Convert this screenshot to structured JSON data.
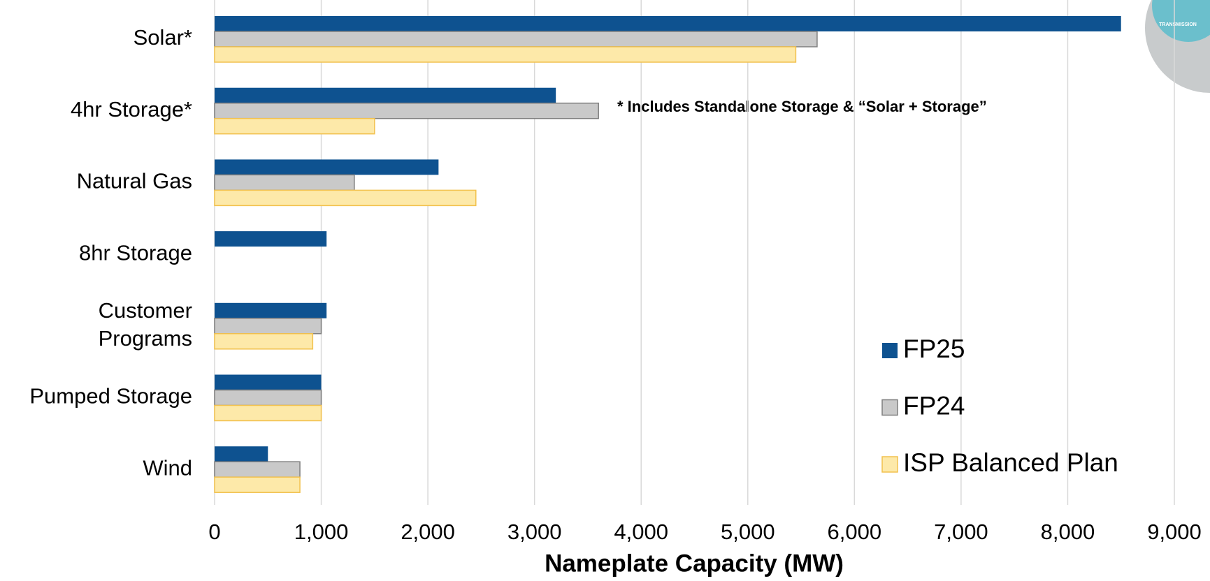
{
  "chart_data": {
    "type": "hbar",
    "categories": [
      "Solar*",
      "4hr Storage*",
      "Natural Gas",
      "8hr Storage",
      "Customer\nPrograms",
      "Pumped Storage",
      "Wind"
    ],
    "series": [
      {
        "name": "FP25",
        "color": "#0e5290",
        "values": [
          8500,
          3200,
          2100,
          1050,
          1050,
          1000,
          500
        ]
      },
      {
        "name": "FP24",
        "color": "#c9c9c9",
        "values": [
          5650,
          3600,
          1310,
          null,
          1000,
          1000,
          800
        ]
      },
      {
        "name": "ISP Balanced Plan",
        "color": "#fde9a9",
        "values": [
          5450,
          1500,
          2450,
          null,
          920,
          1000,
          800
        ]
      }
    ],
    "xlabel": "Nameplate Capacity (MW)",
    "annotation": "* Includes Standalone Storage & “Solar + Storage”",
    "xlim": [
      0,
      9000
    ],
    "xticks": [
      0,
      {
        "value": 1000,
        "label": "1,000"
      },
      {
        "value": 2000,
        "label": "2,000"
      },
      {
        "value": 3000,
        "label": "3,000"
      },
      {
        "value": 4000,
        "label": "4,000"
      },
      {
        "value": 5000,
        "label": "5,000"
      },
      {
        "value": 6000,
        "label": "6,000"
      },
      {
        "value": 7000,
        "label": "7,000"
      },
      {
        "value": 8000,
        "label": "8,000"
      },
      {
        "value": 9000,
        "label": "9,000"
      }
    ],
    "grid": true,
    "legend": "lower right"
  },
  "logo_text": "TRANSMISSION"
}
